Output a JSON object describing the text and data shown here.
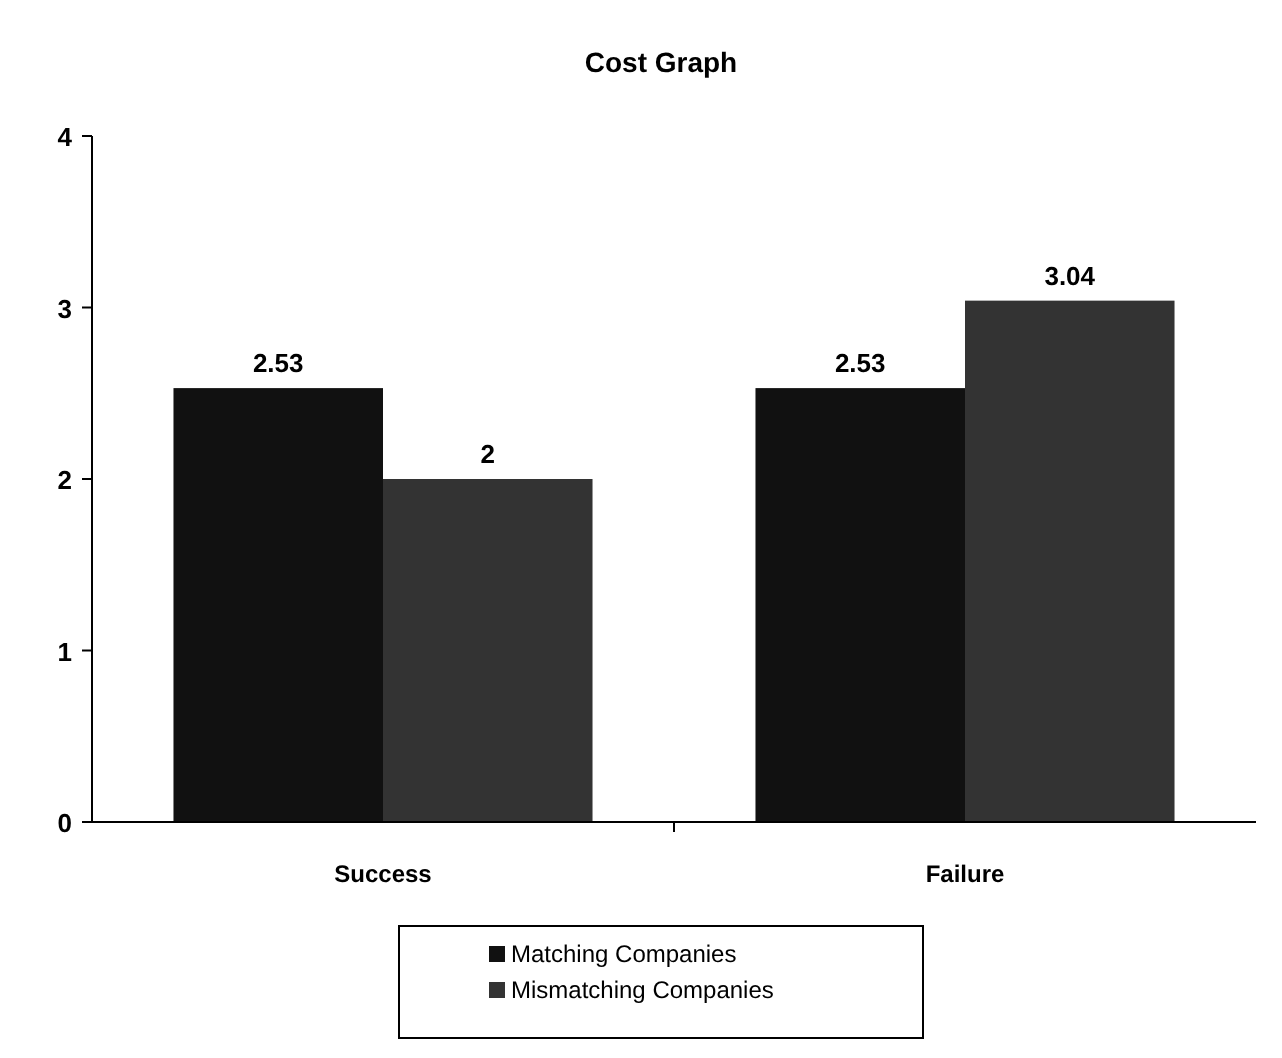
{
  "chart_data": {
    "type": "bar",
    "title": "Cost Graph",
    "categories": [
      "Success",
      "Failure"
    ],
    "series": [
      {
        "name": "Matching Companies",
        "color": "#111111",
        "values": [
          2.53,
          2.53
        ]
      },
      {
        "name": "Mismatching Companies",
        "color": "#333333",
        "values": [
          2,
          3.04
        ]
      }
    ],
    "ylim": [
      0,
      4
    ],
    "yticks": [
      0,
      1,
      2,
      3,
      4
    ],
    "grid": false,
    "legend": "bottom",
    "data_labels": true
  }
}
